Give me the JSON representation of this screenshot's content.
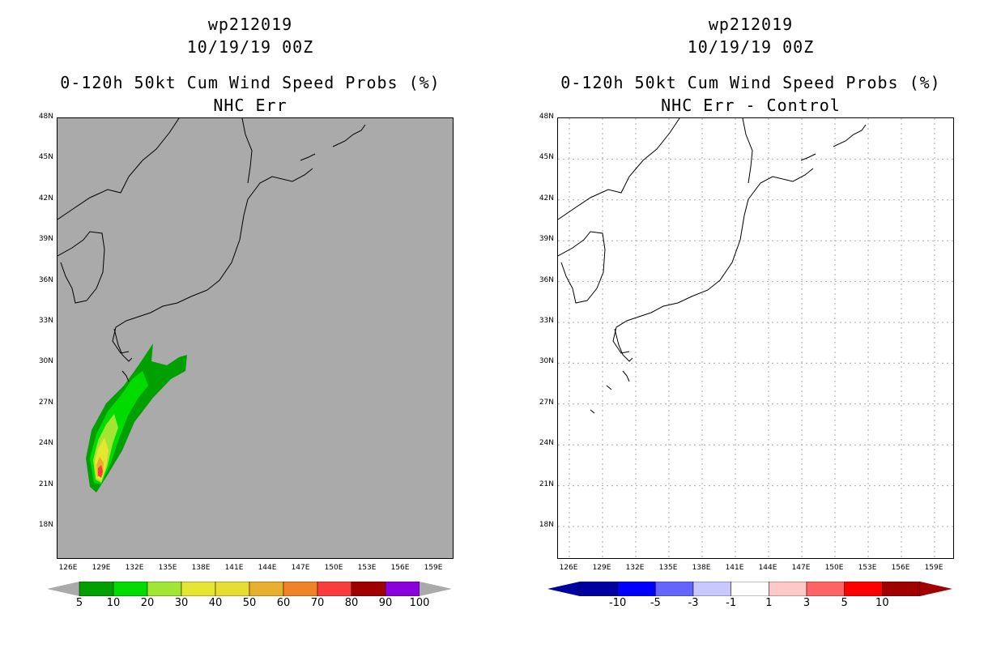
{
  "left": {
    "title_line1": "wp212019",
    "title_line2": "10/19/19 00Z",
    "title_line3": "0-120h 50kt Cum Wind Speed Probs (%)",
    "title_line4": "NHC Err",
    "background": "#aaaaaa",
    "colorbar": {
      "colors": [
        "#00a000",
        "#00dc00",
        "#a0e632",
        "#e6e632",
        "#e6dc32",
        "#e6af2d",
        "#f08228",
        "#fa3c3c",
        "#a00000",
        "#8c00dc"
      ],
      "labels": [
        "5",
        "10",
        "20",
        "30",
        "40",
        "50",
        "60",
        "70",
        "80",
        "90",
        "100"
      ]
    }
  },
  "right": {
    "title_line1": "wp212019",
    "title_line2": "10/19/19 00Z",
    "title_line3": "0-120h 50kt Cum Wind Speed Probs (%)",
    "title_line4": "NHC Err - Control",
    "background": "#ffffff",
    "colorbar": {
      "colors": [
        "#0000a0",
        "#0000ff",
        "#6464ff",
        "#c8c8ff",
        "#ffffff",
        "#ffc8c8",
        "#ff6464",
        "#ff0000",
        "#a00000"
      ],
      "labels": [
        "-10",
        "-5",
        "-3",
        "-1",
        "1",
        "3",
        "5",
        "10"
      ]
    }
  },
  "axes": {
    "lat_labels": [
      "48N",
      "45N",
      "42N",
      "39N",
      "36N",
      "33N",
      "30N",
      "27N",
      "24N",
      "21N",
      "18N"
    ],
    "lon_labels": [
      "126E",
      "129E",
      "132E",
      "135E",
      "138E",
      "141E",
      "144E",
      "147E",
      "150E",
      "153E",
      "156E",
      "159E"
    ]
  }
}
